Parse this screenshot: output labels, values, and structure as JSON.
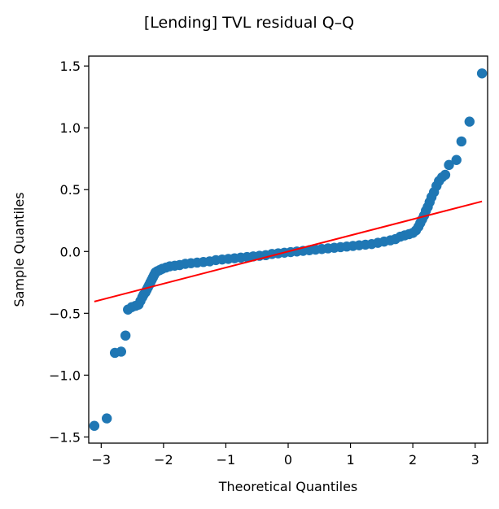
{
  "chart_data": {
    "type": "scatter",
    "title": "[Lending] TVL residual Q–Q",
    "xlabel": "Theoretical Quantiles",
    "ylabel": "Sample Quantiles",
    "xlim": [
      -3.2,
      3.2
    ],
    "ylim": [
      -1.55,
      1.58
    ],
    "xticks": [
      -3,
      -2,
      -1,
      0,
      1,
      2,
      3
    ],
    "xtick_labels": [
      "−3",
      "−2",
      "−1",
      "0",
      "1",
      "2",
      "3"
    ],
    "yticks": [
      -1.5,
      -1.0,
      -0.5,
      0.0,
      0.5,
      1.0,
      1.5
    ],
    "ytick_labels": [
      "−1.5",
      "−1.0",
      "−0.5",
      "0.0",
      "0.5",
      "1.0",
      "1.5"
    ],
    "grid": false,
    "legend": "none",
    "series": [
      {
        "kind": "points",
        "color": "#1f77b4",
        "points": [
          [
            -3.11,
            -1.41
          ],
          [
            -2.91,
            -1.35
          ],
          [
            -2.78,
            -0.82
          ],
          [
            -2.68,
            -0.81
          ],
          [
            -2.61,
            -0.68
          ],
          [
            -2.57,
            -0.47
          ],
          [
            -2.51,
            -0.45
          ],
          [
            -2.45,
            -0.44
          ],
          [
            -2.4,
            -0.43
          ],
          [
            -2.37,
            -0.4
          ],
          [
            -2.34,
            -0.37
          ],
          [
            -2.32,
            -0.35
          ],
          [
            -2.29,
            -0.33
          ],
          [
            -2.27,
            -0.31
          ],
          [
            -2.25,
            -0.29
          ],
          [
            -2.23,
            -0.27
          ],
          [
            -2.21,
            -0.25
          ],
          [
            -2.19,
            -0.23
          ],
          [
            -2.17,
            -0.21
          ],
          [
            -2.15,
            -0.19
          ],
          [
            -2.13,
            -0.17
          ],
          [
            -2.1,
            -0.16
          ],
          [
            -2.06,
            -0.15
          ],
          [
            -2.02,
            -0.14
          ],
          [
            -1.96,
            -0.13
          ],
          [
            -1.9,
            -0.12
          ],
          [
            -1.82,
            -0.115
          ],
          [
            -1.74,
            -0.11
          ],
          [
            -1.65,
            -0.1
          ],
          [
            -1.56,
            -0.095
          ],
          [
            -1.46,
            -0.09
          ],
          [
            -1.36,
            -0.085
          ],
          [
            -1.26,
            -0.08
          ],
          [
            -1.16,
            -0.07
          ],
          [
            -1.06,
            -0.065
          ],
          [
            -0.96,
            -0.06
          ],
          [
            -0.86,
            -0.055
          ],
          [
            -0.76,
            -0.05
          ],
          [
            -0.66,
            -0.045
          ],
          [
            -0.56,
            -0.04
          ],
          [
            -0.46,
            -0.035
          ],
          [
            -0.36,
            -0.03
          ],
          [
            -0.26,
            -0.02
          ],
          [
            -0.16,
            -0.015
          ],
          [
            -0.06,
            -0.01
          ],
          [
            0.04,
            -0.005
          ],
          [
            0.14,
            0.0
          ],
          [
            0.24,
            0.005
          ],
          [
            0.34,
            0.01
          ],
          [
            0.44,
            0.015
          ],
          [
            0.54,
            0.02
          ],
          [
            0.64,
            0.025
          ],
          [
            0.74,
            0.03
          ],
          [
            0.84,
            0.035
          ],
          [
            0.94,
            0.04
          ],
          [
            1.04,
            0.045
          ],
          [
            1.14,
            0.05
          ],
          [
            1.24,
            0.055
          ],
          [
            1.34,
            0.06
          ],
          [
            1.44,
            0.07
          ],
          [
            1.54,
            0.08
          ],
          [
            1.64,
            0.09
          ],
          [
            1.72,
            0.1
          ],
          [
            1.8,
            0.12
          ],
          [
            1.87,
            0.13
          ],
          [
            1.94,
            0.14
          ],
          [
            2.0,
            0.15
          ],
          [
            2.05,
            0.17
          ],
          [
            2.09,
            0.2
          ],
          [
            2.12,
            0.23
          ],
          [
            2.15,
            0.26
          ],
          [
            2.18,
            0.29
          ],
          [
            2.21,
            0.33
          ],
          [
            2.24,
            0.36
          ],
          [
            2.27,
            0.4
          ],
          [
            2.3,
            0.44
          ],
          [
            2.34,
            0.48
          ],
          [
            2.38,
            0.53
          ],
          [
            2.42,
            0.57
          ],
          [
            2.47,
            0.6
          ],
          [
            2.52,
            0.62
          ],
          [
            2.58,
            0.7
          ],
          [
            2.7,
            0.74
          ],
          [
            2.78,
            0.89
          ],
          [
            2.91,
            1.05
          ],
          [
            3.11,
            1.44
          ]
        ]
      },
      {
        "kind": "reference-line",
        "color": "#ff0000",
        "x": [
          -3.11,
          3.11
        ],
        "y": [
          -0.405,
          0.405
        ]
      }
    ]
  }
}
